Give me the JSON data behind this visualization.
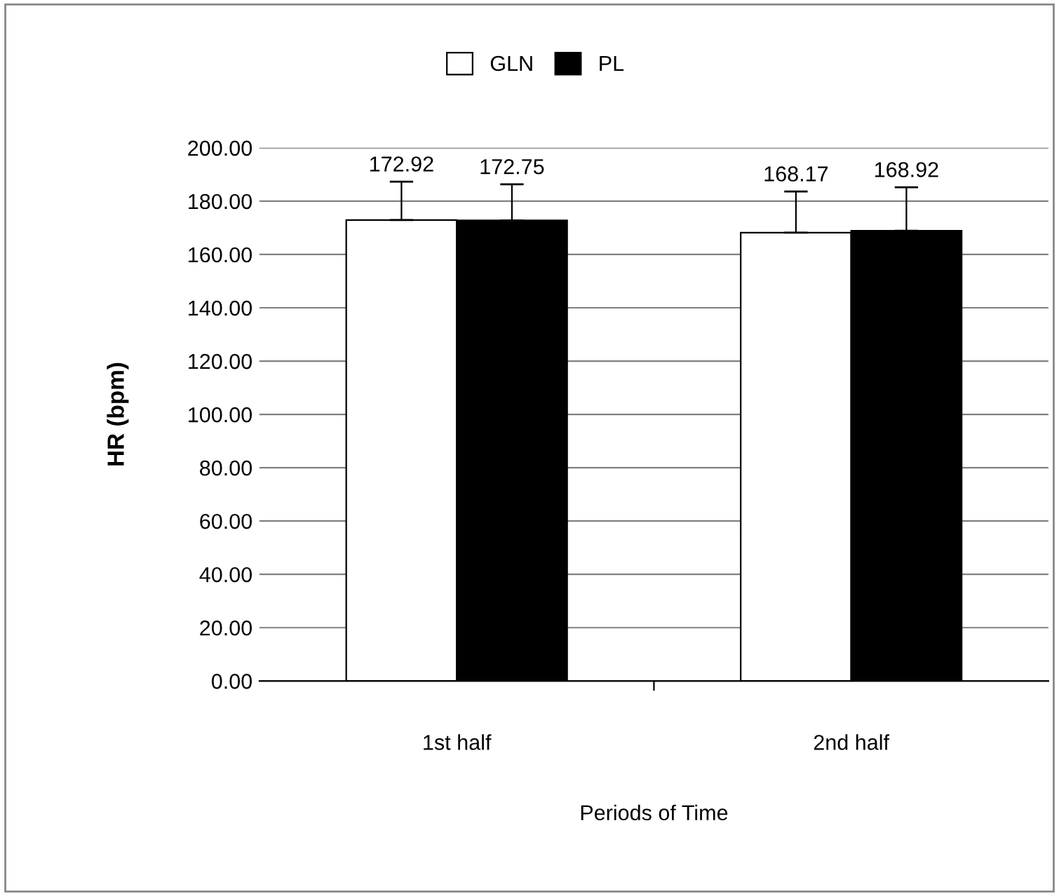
{
  "chart_data": {
    "type": "bar",
    "xlabel": "Periods of Time",
    "ylabel": "HR (bpm)",
    "categories": [
      "1st half",
      "2nd half"
    ],
    "series": [
      {
        "name": "GLN",
        "color": "#ffffff",
        "values": [
          172.92,
          168.17
        ],
        "errors": [
          [
            172.92,
            187.3
          ],
          [
            168.17,
            183.6
          ]
        ]
      },
      {
        "name": "PL",
        "color": "#000000",
        "values": [
          172.75,
          168.92
        ],
        "errors": [
          [
            172.75,
            186.3
          ],
          [
            168.92,
            185.2
          ]
        ]
      }
    ],
    "ylim": [
      0,
      200
    ],
    "yticks": [
      {
        "value": 0,
        "label": "0.00"
      },
      {
        "value": 20,
        "label": "20.00"
      },
      {
        "value": 40,
        "label": "40.00"
      },
      {
        "value": 60,
        "label": "60.00"
      },
      {
        "value": 80,
        "label": "80.00"
      },
      {
        "value": 100,
        "label": "100.00"
      },
      {
        "value": 120,
        "label": "120.00"
      },
      {
        "value": 140,
        "label": "140.00"
      },
      {
        "value": 160,
        "label": "160.00"
      },
      {
        "value": 180,
        "label": "180.00"
      },
      {
        "value": 200,
        "label": "200.00"
      }
    ],
    "grid": "y",
    "legend": "top",
    "data_labels": true
  }
}
